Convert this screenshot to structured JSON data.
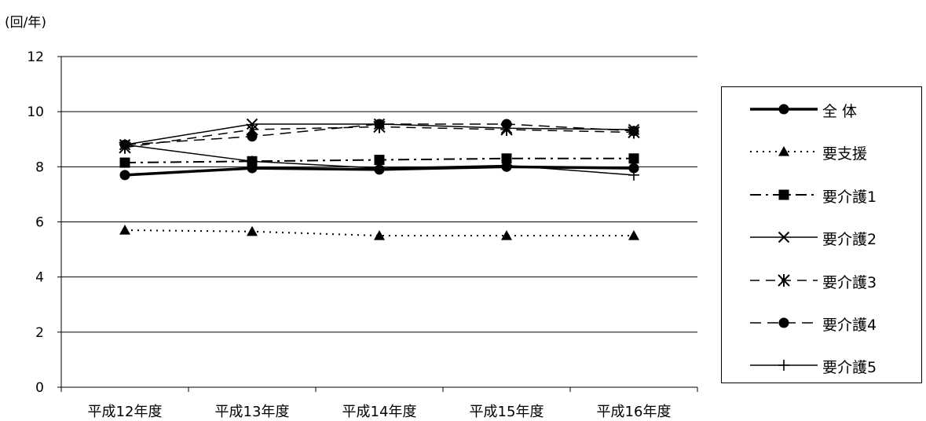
{
  "chart_data": {
    "type": "line",
    "unit_label": "(回/年)",
    "categories": [
      "平成12年度",
      "平成13年度",
      "平成14年度",
      "平成15年度",
      "平成16年度"
    ],
    "ylim": [
      0,
      12
    ],
    "yticks": [
      "0",
      "2",
      "4",
      "6",
      "8",
      "10",
      "12"
    ],
    "grid": true,
    "legend_position": "right",
    "series": [
      {
        "name": "全 体",
        "values": [
          7.7,
          7.95,
          7.9,
          8.0,
          7.95
        ],
        "marker": "circle",
        "dash": "solid",
        "width": 3.5
      },
      {
        "name": "要支援",
        "values": [
          5.7,
          5.65,
          5.5,
          5.5,
          5.5
        ],
        "marker": "triangle",
        "dash": "dotted",
        "width": 2
      },
      {
        "name": "要介護1",
        "values": [
          8.15,
          8.2,
          8.25,
          8.3,
          8.3
        ],
        "marker": "square",
        "dash": "dashdot",
        "width": 2
      },
      {
        "name": "要介護2",
        "values": [
          8.8,
          9.55,
          9.55,
          9.4,
          9.35
        ],
        "marker": "x",
        "dash": "solid",
        "width": 1.5
      },
      {
        "name": "要介護3",
        "values": [
          8.7,
          9.35,
          9.45,
          9.35,
          9.25
        ],
        "marker": "asterisk",
        "dash": "dashed",
        "width": 1.5
      },
      {
        "name": "要介護4",
        "values": [
          8.8,
          9.1,
          9.55,
          9.55,
          9.3
        ],
        "marker": "circle",
        "dash": "longdash",
        "width": 1.5
      },
      {
        "name": "要介護5",
        "values": [
          8.8,
          8.2,
          7.95,
          8.05,
          7.7
        ],
        "marker": "plus",
        "dash": "solid",
        "width": 1.5
      }
    ]
  }
}
